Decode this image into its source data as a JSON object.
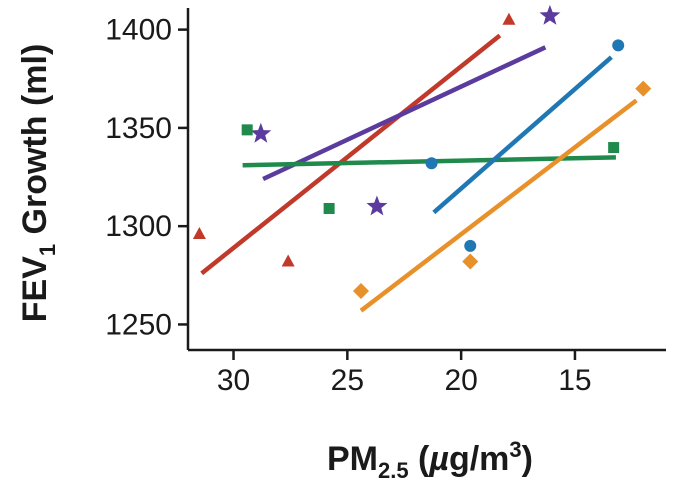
{
  "chart_data": {
    "type": "scatter",
    "title": "",
    "xlabel": {
      "main": "PM",
      "sub": "2.5",
      "unit_prefix": " (",
      "unit_mu": "µ",
      "unit_mid": "g/m",
      "unit_sup": "3",
      "unit_suffix": ")"
    },
    "ylabel": {
      "main": "FEV",
      "sub": "1",
      "rest": " Growth (ml)"
    },
    "xlim": [
      32,
      11
    ],
    "ylim": [
      1237,
      1411
    ],
    "x_reversed": true,
    "grid": false,
    "legend": "none",
    "xticks": [
      30,
      25,
      20,
      15
    ],
    "yticks": [
      1250,
      1300,
      1350,
      1400
    ],
    "series": [
      {
        "color": "#c0392b",
        "marker": "triangle",
        "points": [
          [
            31.5,
            1296
          ],
          [
            27.6,
            1282
          ],
          [
            17.9,
            1405
          ]
        ],
        "fit": [
          [
            31.4,
            1276
          ],
          [
            18.3,
            1397
          ]
        ]
      },
      {
        "color": "#5b3c9e",
        "marker": "star",
        "points": [
          [
            28.8,
            1347
          ],
          [
            23.7,
            1310
          ],
          [
            16.1,
            1407
          ]
        ],
        "fit": [
          [
            28.7,
            1324
          ],
          [
            16.3,
            1391
          ]
        ]
      },
      {
        "color": "#1f8a4c",
        "marker": "square",
        "points": [
          [
            29.4,
            1349
          ],
          [
            25.8,
            1309
          ],
          [
            13.3,
            1340
          ]
        ],
        "fit": [
          [
            29.6,
            1331
          ],
          [
            13.2,
            1335
          ]
        ]
      },
      {
        "color": "#1f77b4",
        "marker": "circle",
        "points": [
          [
            21.3,
            1332
          ],
          [
            19.6,
            1290
          ],
          [
            13.1,
            1392
          ]
        ],
        "fit": [
          [
            21.2,
            1307
          ],
          [
            13.4,
            1386
          ]
        ]
      },
      {
        "color": "#e8902a",
        "marker": "diamond",
        "points": [
          [
            24.4,
            1267
          ],
          [
            19.6,
            1282
          ],
          [
            12.0,
            1370
          ]
        ],
        "fit": [
          [
            24.4,
            1257
          ],
          [
            12.3,
            1364
          ]
        ]
      }
    ]
  }
}
